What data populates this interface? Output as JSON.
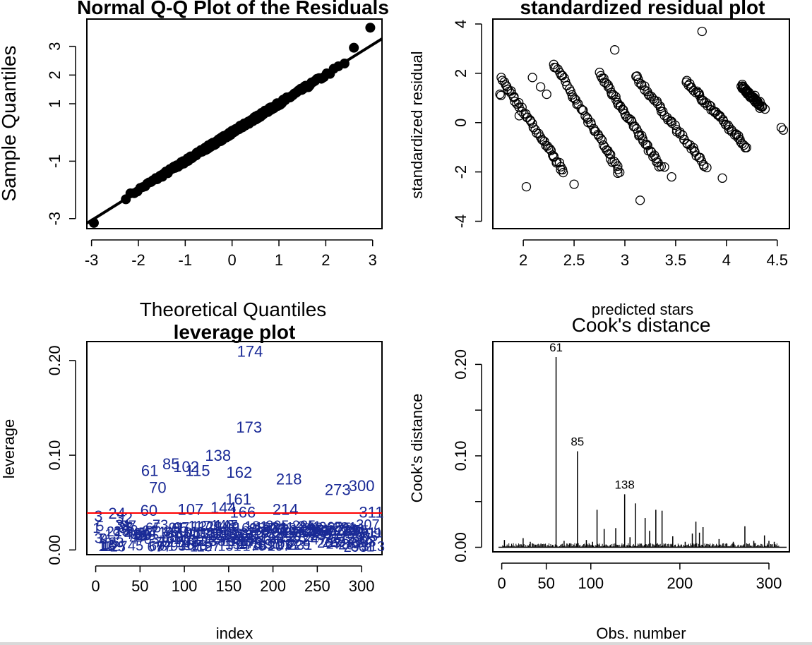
{
  "chart_data": [
    {
      "type": "scatter",
      "title": "Normal Q-Q Plot of the Residuals",
      "xlabel": "Theoretical Quantiles",
      "ylabel": "Sample Quantiles",
      "xlim": [
        -3.1,
        3.2
      ],
      "ylim": [
        -3.35,
        3.95
      ],
      "x_ticks": [
        -3,
        -2,
        -1,
        0,
        1,
        2,
        3
      ],
      "y_ticks": [
        -3,
        -1,
        1,
        2,
        3
      ],
      "reference_line": {
        "intercept": 0.0,
        "slope": 1.02
      },
      "points_description": "residual quantiles vs theoretical normal quantiles (n≈311)",
      "highlight_points": [
        {
          "x": -2.95,
          "y": -3.15
        },
        {
          "x": 2.95,
          "y": 3.65
        },
        {
          "x": 2.6,
          "y": 2.95
        },
        {
          "x": 2.4,
          "y": 2.4
        }
      ],
      "marker_color": "#000000"
    },
    {
      "type": "scatter",
      "title": "standardized residual plot",
      "xlabel": "predicted stars",
      "ylabel": "standardized residual",
      "xlim": [
        1.7,
        4.62
      ],
      "ylim": [
        -4.3,
        4.2
      ],
      "x_ticks": [
        2.0,
        2.5,
        3.0,
        3.5,
        4.0,
        4.5
      ],
      "y_ticks": [
        -4,
        -2,
        0,
        2,
        4
      ],
      "bands": [
        {
          "x_start": 1.78,
          "x_end": 2.4,
          "y_start": 1.8,
          "y_end": -2.0
        },
        {
          "x_start": 2.3,
          "x_end": 2.95,
          "y_start": 2.4,
          "y_end": -2.0
        },
        {
          "x_start": 2.75,
          "x_end": 3.35,
          "y_start": 2.0,
          "y_end": -1.8
        },
        {
          "x_start": 3.1,
          "x_end": 3.8,
          "y_start": 1.9,
          "y_end": -1.8
        },
        {
          "x_start": 3.6,
          "x_end": 4.2,
          "y_start": 1.7,
          "y_end": -1.0
        },
        {
          "x_start": 4.15,
          "x_end": 4.35,
          "y_start": 1.5,
          "y_end": 0.6
        }
      ],
      "outliers": [
        {
          "x": 1.77,
          "y": 1.15
        },
        {
          "x": 1.78,
          "y": 1.1
        },
        {
          "x": 1.96,
          "y": 0.28
        },
        {
          "x": 2.03,
          "y": -2.6
        },
        {
          "x": 2.09,
          "y": 1.83
        },
        {
          "x": 2.17,
          "y": 1.45
        },
        {
          "x": 2.23,
          "y": 1.15
        },
        {
          "x": 2.5,
          "y": -2.5
        },
        {
          "x": 2.9,
          "y": 2.95
        },
        {
          "x": 2.93,
          "y": -2.05
        },
        {
          "x": 3.15,
          "y": -3.15
        },
        {
          "x": 3.39,
          "y": -1.8
        },
        {
          "x": 3.46,
          "y": -2.2
        },
        {
          "x": 3.76,
          "y": 3.7
        },
        {
          "x": 3.96,
          "y": -2.25
        },
        {
          "x": 4.28,
          "y": 1.1
        },
        {
          "x": 4.33,
          "y": 0.85
        },
        {
          "x": 4.38,
          "y": 0.55
        },
        {
          "x": 4.54,
          "y": -0.2
        },
        {
          "x": 4.56,
          "y": -0.3
        }
      ],
      "marker": "open-circle"
    },
    {
      "type": "scatter",
      "title": "leverage plot",
      "xlabel": "index",
      "ylabel": "leverage",
      "xlim": [
        -10,
        323
      ],
      "ylim": [
        -0.005,
        0.22
      ],
      "x_ticks": [
        0,
        50,
        100,
        150,
        200,
        250,
        300
      ],
      "y_ticks": [
        0.0,
        0.1,
        0.2
      ],
      "y_tick_labels": [
        "0.00",
        "0.10",
        "0.20"
      ],
      "threshold_line": {
        "y": 0.039,
        "color": "#ff0000"
      },
      "marker": "index-label",
      "label_color": "#1a2a96",
      "labeled_points": [
        {
          "label": "174",
          "x": 174,
          "y": 0.21
        },
        {
          "label": "173",
          "x": 173,
          "y": 0.13
        },
        {
          "label": "138",
          "x": 138,
          "y": 0.1
        },
        {
          "label": "85",
          "x": 85,
          "y": 0.091
        },
        {
          "label": "102",
          "x": 102,
          "y": 0.088
        },
        {
          "label": "61",
          "x": 61,
          "y": 0.084
        },
        {
          "label": "115",
          "x": 115,
          "y": 0.084
        },
        {
          "label": "162",
          "x": 162,
          "y": 0.082
        },
        {
          "label": "218",
          "x": 218,
          "y": 0.075
        },
        {
          "label": "300",
          "x": 300,
          "y": 0.068
        },
        {
          "label": "273",
          "x": 273,
          "y": 0.064
        },
        {
          "label": "70",
          "x": 70,
          "y": 0.066
        },
        {
          "label": "161",
          "x": 161,
          "y": 0.054
        },
        {
          "label": "60",
          "x": 60,
          "y": 0.042
        },
        {
          "label": "107",
          "x": 107,
          "y": 0.043
        },
        {
          "label": "144",
          "x": 144,
          "y": 0.045
        },
        {
          "label": "166",
          "x": 166,
          "y": 0.04
        },
        {
          "label": "214",
          "x": 214,
          "y": 0.043
        },
        {
          "label": "311",
          "x": 311,
          "y": 0.04
        },
        {
          "label": "3",
          "x": 3,
          "y": 0.036
        },
        {
          "label": "24",
          "x": 24,
          "y": 0.039
        },
        {
          "label": "32",
          "x": 32,
          "y": 0.034
        }
      ]
    },
    {
      "type": "bar",
      "title": "Cook's distance",
      "xlabel": "Obs. number",
      "ylabel": "Cook's distance",
      "xlim": [
        -10,
        323
      ],
      "ylim": [
        -0.005,
        0.225
      ],
      "x_ticks": [
        0,
        50,
        100,
        200,
        300
      ],
      "y_ticks": [
        0.0,
        0.05,
        0.1,
        0.15,
        0.2
      ],
      "y_tick_labels": [
        "0.00",
        "",
        "0.10",
        "",
        "0.20"
      ],
      "labeled_bars": [
        {
          "label": "61",
          "x": 61,
          "y": 0.208
        },
        {
          "label": "85",
          "x": 85,
          "y": 0.105
        },
        {
          "label": "138",
          "x": 138,
          "y": 0.058
        }
      ],
      "other_bars": [
        {
          "x": 3,
          "y": 0.008
        },
        {
          "x": 24,
          "y": 0.01
        },
        {
          "x": 32,
          "y": 0.006
        },
        {
          "x": 70,
          "y": 0.007
        },
        {
          "x": 95,
          "y": 0.008
        },
        {
          "x": 102,
          "y": 0.006
        },
        {
          "x": 107,
          "y": 0.041
        },
        {
          "x": 115,
          "y": 0.02
        },
        {
          "x": 128,
          "y": 0.021
        },
        {
          "x": 144,
          "y": 0.011
        },
        {
          "x": 150,
          "y": 0.048
        },
        {
          "x": 161,
          "y": 0.032
        },
        {
          "x": 166,
          "y": 0.018
        },
        {
          "x": 173,
          "y": 0.041
        },
        {
          "x": 180,
          "y": 0.04
        },
        {
          "x": 192,
          "y": 0.012
        },
        {
          "x": 206,
          "y": 0.006
        },
        {
          "x": 214,
          "y": 0.015
        },
        {
          "x": 218,
          "y": 0.028
        },
        {
          "x": 222,
          "y": 0.016
        },
        {
          "x": 226,
          "y": 0.022
        },
        {
          "x": 244,
          "y": 0.009
        },
        {
          "x": 260,
          "y": 0.006
        },
        {
          "x": 273,
          "y": 0.023
        },
        {
          "x": 283,
          "y": 0.007
        },
        {
          "x": 295,
          "y": 0.013
        },
        {
          "x": 300,
          "y": 0.007
        },
        {
          "x": 306,
          "y": 0.006
        }
      ]
    }
  ]
}
